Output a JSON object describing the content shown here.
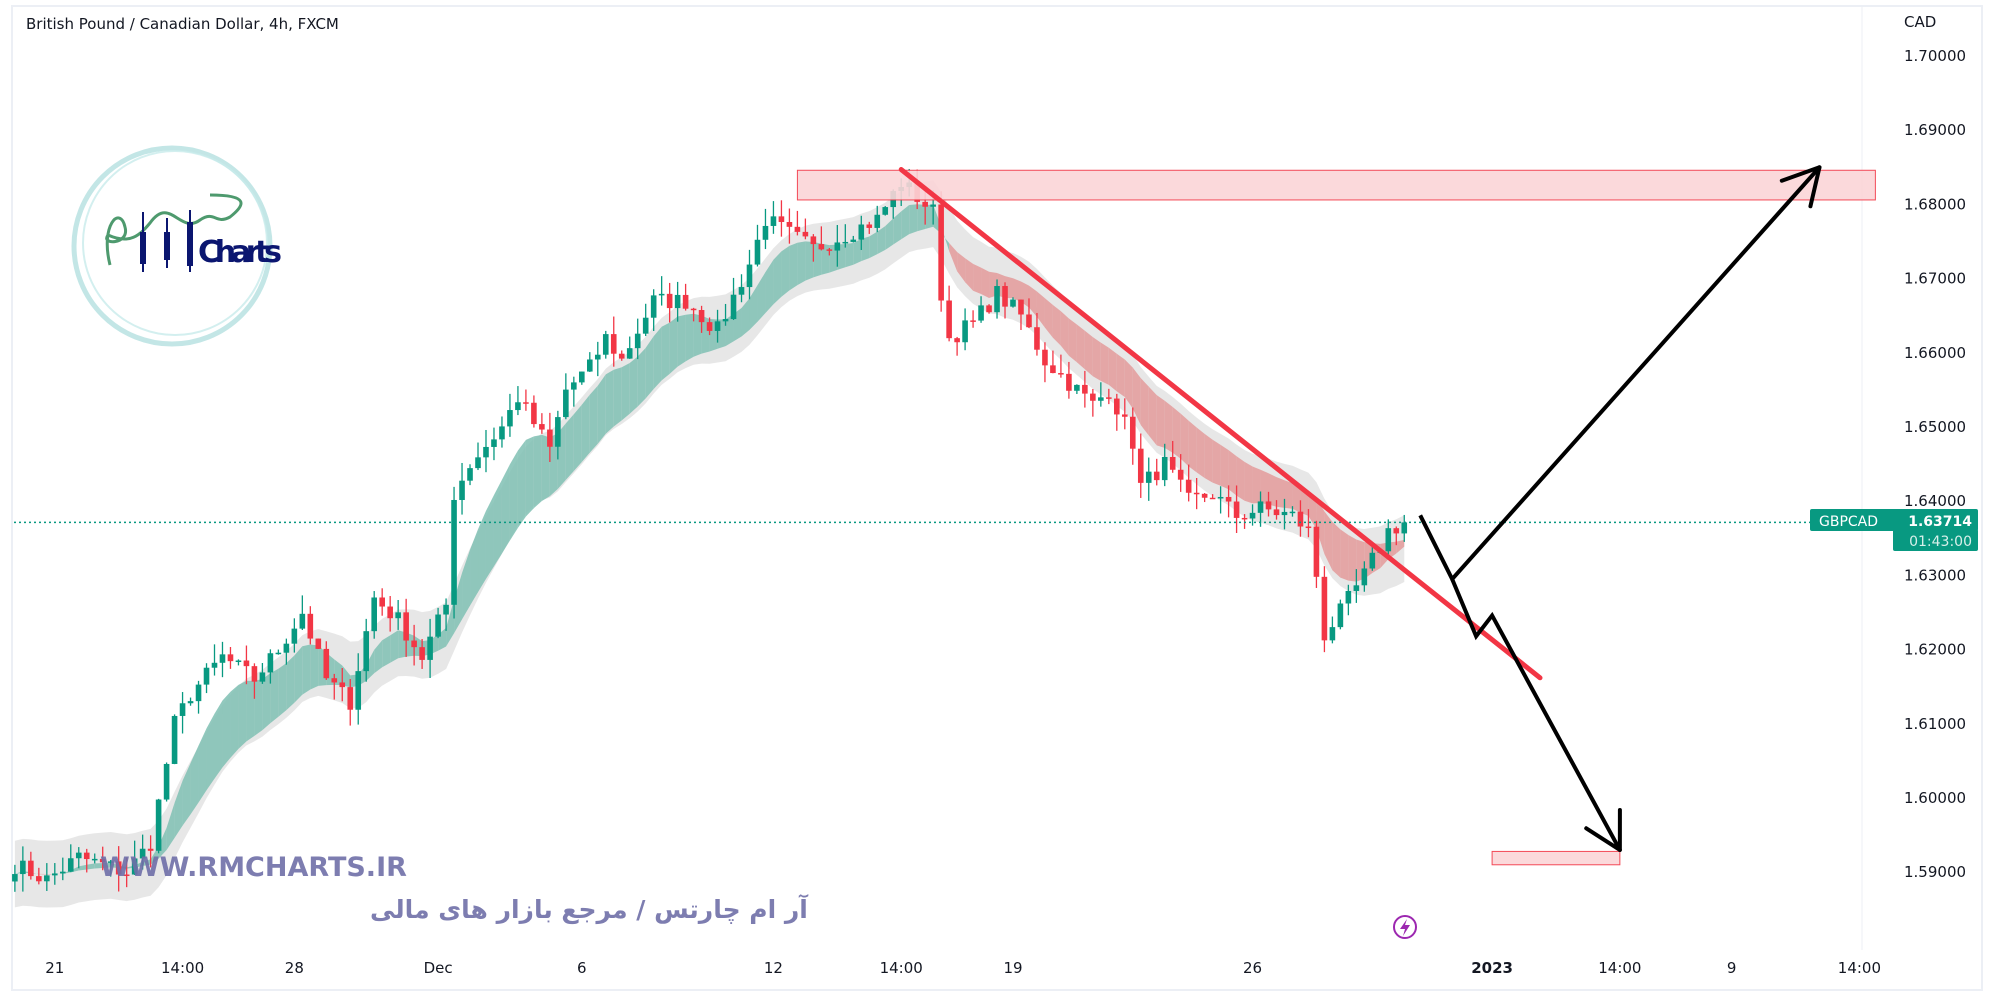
{
  "header": {
    "title": "British Pound / Canadian Dollar, 4h, FXCM"
  },
  "price_axis": {
    "currency": "CAD"
  },
  "price_tag": {
    "symbol": "GBPCAD",
    "price": "1.63714",
    "countdown": "01:43:00"
  },
  "watermark": {
    "url": "WWW.RMCHARTS.IR",
    "tagline": "آر ام چارتس / مرجع بازار های مالی",
    "logo_text": "RM Charts"
  },
  "colors": {
    "up": "#089981",
    "down": "#f23645",
    "cloud_up": "#7fbfb3",
    "cloud_down": "#e39a9a",
    "band": "#e3e3e3",
    "tag": "#089981",
    "watermark": "#6f6fa8",
    "logo_ring": "#a9dcdc",
    "logo_text": "#0b1670",
    "trendline": "#f23645",
    "zone_fill": "#fbd5d8",
    "zone_border": "#f23645",
    "projection": "#000000",
    "lightning": "#9c27b0"
  },
  "icons": {
    "bottom_marker": "lightning-icon"
  },
  "chart_data": {
    "type": "candlestick",
    "title": "British Pound / Canadian Dollar, 4h, FXCM",
    "timeframe": "4h",
    "ylim": [
      1.585,
      1.705
    ],
    "y_ticks": [
      "1.70000",
      "1.69000",
      "1.68000",
      "1.67000",
      "1.66000",
      "1.65000",
      "1.64000",
      "1.63000",
      "1.62000",
      "1.61000",
      "1.60000",
      "1.59000"
    ],
    "x_ticks": [
      {
        "label": "21",
        "date": "2022-11-21 00:00"
      },
      {
        "label": "14:00",
        "date": "2022-11-23 16:00"
      },
      {
        "label": "28",
        "date": "2022-11-28 00:00"
      },
      {
        "label": "Dec",
        "date": "2022-12-01 00:00"
      },
      {
        "label": "6",
        "date": "2022-12-06 00:00"
      },
      {
        "label": "12",
        "date": "2022-12-12 00:00"
      },
      {
        "label": "14:00",
        "date": "2022-12-14 16:00"
      },
      {
        "label": "19",
        "date": "2022-12-19 00:00"
      },
      {
        "label": "26",
        "date": "2022-12-26 00:00"
      },
      {
        "label": "2023",
        "date": "2023-01-02 00:00"
      },
      {
        "label": "14:00",
        "date": "2023-01-04 16:00"
      },
      {
        "label": "9",
        "date": "2023-01-09 00:00"
      },
      {
        "label": "14:00",
        "date": "2023-01-11 16:00"
      }
    ],
    "last_price": 1.63714,
    "price_path": [
      [
        "2022-11-18 04:00",
        1.591
      ],
      [
        "2022-11-18 20:00",
        1.589
      ],
      [
        "2022-11-21 12:00",
        1.592
      ],
      [
        "2022-11-22 12:00",
        1.59
      ],
      [
        "2022-11-23 00:00",
        1.594
      ],
      [
        "2022-11-23 12:00",
        1.61
      ],
      [
        "2022-11-23 20:00",
        1.614
      ],
      [
        "2022-11-24 12:00",
        1.619
      ],
      [
        "2022-11-25 04:00",
        1.616
      ],
      [
        "2022-11-25 16:00",
        1.62
      ],
      [
        "2022-11-28 04:00",
        1.625
      ],
      [
        "2022-11-28 16:00",
        1.616
      ],
      [
        "2022-11-29 04:00",
        1.613
      ],
      [
        "2022-11-29 16:00",
        1.627
      ],
      [
        "2022-11-30 04:00",
        1.624
      ],
      [
        "2022-11-30 16:00",
        1.619
      ],
      [
        "2022-12-01 04:00",
        1.626
      ],
      [
        "2022-12-01 08:00",
        1.641
      ],
      [
        "2022-12-01 16:00",
        1.645
      ],
      [
        "2022-12-02 08:00",
        1.65
      ],
      [
        "2022-12-02 16:00",
        1.654
      ],
      [
        "2022-12-05 08:00",
        1.647
      ],
      [
        "2022-12-05 16:00",
        1.655
      ],
      [
        "2022-12-06 04:00",
        1.658
      ],
      [
        "2022-12-06 12:00",
        1.662
      ],
      [
        "2022-12-06 20:00",
        1.659
      ],
      [
        "2022-12-07 12:00",
        1.667
      ],
      [
        "2022-12-08 04:00",
        1.667
      ],
      [
        "2022-12-08 20:00",
        1.663
      ],
      [
        "2022-12-09 12:00",
        1.672
      ],
      [
        "2022-12-09 20:00",
        1.678
      ],
      [
        "2022-12-12 08:00",
        1.676
      ],
      [
        "2022-12-12 20:00",
        1.674
      ],
      [
        "2022-12-13 12:00",
        1.676
      ],
      [
        "2022-12-14 04:00",
        1.678
      ],
      [
        "2022-12-14 16:00",
        1.683
      ],
      [
        "2022-12-15 08:00",
        1.679
      ],
      [
        "2022-12-15 12:00",
        1.668
      ],
      [
        "2022-12-15 16:00",
        1.662
      ],
      [
        "2022-12-16 04:00",
        1.664
      ],
      [
        "2022-12-16 16:00",
        1.668
      ],
      [
        "2022-12-19 04:00",
        1.665
      ],
      [
        "2022-12-19 16:00",
        1.659
      ],
      [
        "2022-12-20 04:00",
        1.656
      ],
      [
        "2022-12-20 16:00",
        1.653
      ],
      [
        "2022-12-21 00:00",
        1.655
      ],
      [
        "2022-12-21 12:00",
        1.648
      ],
      [
        "2022-12-21 16:00",
        1.642
      ],
      [
        "2022-12-22 04:00",
        1.645
      ],
      [
        "2022-12-22 16:00",
        1.64
      ],
      [
        "2022-12-23 04:00",
        1.641
      ],
      [
        "2022-12-23 16:00",
        1.638
      ],
      [
        "2022-12-26 04:00",
        1.639
      ],
      [
        "2022-12-26 20:00",
        1.638
      ],
      [
        "2022-12-27 04:00",
        1.636
      ],
      [
        "2022-12-27 08:00",
        1.63
      ],
      [
        "2022-12-27 12:00",
        1.622
      ],
      [
        "2022-12-27 20:00",
        1.625
      ],
      [
        "2022-12-28 08:00",
        1.63
      ],
      [
        "2022-12-28 20:00",
        1.636
      ],
      [
        "2022-12-29 04:00",
        1.63714
      ]
    ],
    "drawings": {
      "resistance_zone": {
        "from": "2022-12-12 12:00",
        "to": "2023-01-12 00:00",
        "low": 1.6806,
        "high": 1.6846
      },
      "support_zone": {
        "from": "2023-01-02 00:00",
        "to": "2023-01-04 16:00",
        "low": 1.591,
        "high": 1.5928
      },
      "trendline": {
        "from": [
          "2022-12-14 16:00",
          1.6847
        ],
        "to": [
          "2023-01-03 00:00",
          1.6162
        ]
      },
      "projection_up": [
        [
          "2022-12-29 12:00",
          1.6381
        ],
        [
          "2022-12-30 04:00",
          1.6295
        ],
        [
          "2023-01-10 20:00",
          1.685
        ]
      ],
      "projection_down": [
        [
          "2022-12-30 04:00",
          1.6295
        ],
        [
          "2022-12-30 16:00",
          1.6218
        ],
        [
          "2023-01-02 00:00",
          1.6246
        ],
        [
          "2023-01-04 16:00",
          1.593
        ]
      ]
    }
  }
}
